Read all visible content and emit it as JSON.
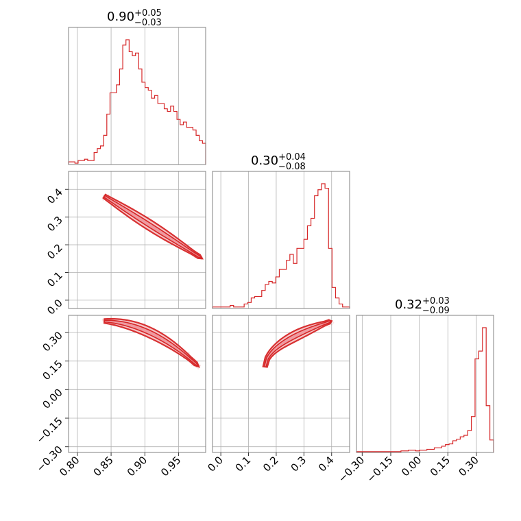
{
  "chart_data": {
    "type": "corner",
    "params": [
      {
        "name": "",
        "median": "0.90",
        "plus": "+0.05",
        "minus": "−0.03",
        "range": [
          0.787,
          0.99
        ],
        "ticks": [
          0.8,
          0.85,
          0.9,
          0.95
        ],
        "tick_labels": [
          "0.80",
          "0.85",
          "0.90",
          "0.95"
        ],
        "hist": [
          2,
          2,
          1,
          3,
          3,
          4,
          3,
          3,
          9,
          12,
          14,
          22,
          38,
          54,
          54,
          60,
          72,
          90,
          94,
          85,
          82,
          84,
          72,
          62,
          58,
          56,
          50,
          52,
          46,
          46,
          42,
          40,
          44,
          40,
          34,
          30,
          32,
          28,
          28,
          26,
          22,
          18,
          16
        ]
      },
      {
        "name": "",
        "median": "0.30",
        "plus": "+0.04",
        "minus": "−0.08",
        "range": [
          -0.03,
          0.465
        ],
        "ticks": [
          0.0,
          0.1,
          0.2,
          0.3,
          0.4
        ],
        "tick_labels": [
          "0.0",
          "0.1",
          "0.2",
          "0.3",
          "0.4"
        ],
        "hist": [
          1,
          1,
          1,
          1,
          1,
          2,
          1,
          1,
          1,
          3,
          4,
          7,
          8,
          8,
          12,
          16,
          18,
          17,
          21,
          26,
          26,
          32,
          36,
          30,
          40,
          40,
          46,
          55,
          60,
          75,
          79,
          83,
          80,
          40,
          14,
          7,
          3,
          1,
          1
        ]
      },
      {
        "name": "",
        "median": "0.32",
        "plus": "+0.03",
        "minus": "−0.09",
        "range": [
          -0.33,
          0.39
        ],
        "ticks": [
          -0.3,
          -0.15,
          0.0,
          0.15,
          0.3
        ],
        "tick_labels": [
          "−0.30",
          "−0.15",
          "0.00",
          "0.15",
          "0.30"
        ],
        "hist": [
          1,
          1,
          1,
          1,
          1,
          1,
          1,
          1,
          1,
          1,
          1,
          1,
          2,
          2,
          3,
          3,
          2,
          3,
          3,
          4,
          4,
          6,
          6,
          8,
          10,
          11,
          15,
          17,
          20,
          22,
          28,
          46,
          120,
          130,
          160,
          60,
          16
        ]
      }
    ],
    "legend": "none",
    "grid": true
  }
}
